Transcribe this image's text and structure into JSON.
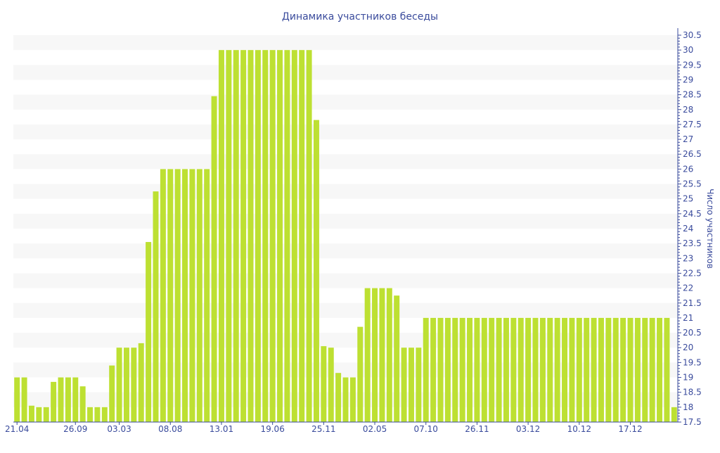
{
  "chart_data": {
    "type": "bar",
    "title": "Динамика участников беседы",
    "xlabel": "",
    "ylabel": "Число участников",
    "ylim": [
      17.5,
      30.5
    ],
    "y_tick_step": 0.5,
    "grid": "alternating horizontal bands",
    "x_tick_labels": [
      {
        "index": 0,
        "label": "21.04"
      },
      {
        "index": 8,
        "label": "26.09"
      },
      {
        "index": 14,
        "label": "03.03"
      },
      {
        "index": 21,
        "label": "08.08"
      },
      {
        "index": 28,
        "label": "13.01"
      },
      {
        "index": 35,
        "label": "19.06"
      },
      {
        "index": 42,
        "label": "25.11"
      },
      {
        "index": 49,
        "label": "02.05"
      },
      {
        "index": 56,
        "label": "07.10"
      },
      {
        "index": 63,
        "label": "26.11"
      },
      {
        "index": 70,
        "label": "03.12"
      },
      {
        "index": 77,
        "label": "10.12"
      },
      {
        "index": 84,
        "label": "17.12"
      }
    ],
    "values": [
      19,
      19,
      18.05,
      18,
      18,
      18.85,
      19,
      19,
      19,
      18.7,
      18,
      18,
      18,
      19.4,
      20,
      20,
      20,
      20.15,
      23.55,
      25.25,
      26,
      26,
      26,
      26,
      26,
      26,
      26,
      28.45,
      30,
      30,
      30,
      30,
      30,
      30,
      30,
      30,
      30,
      30,
      30,
      30,
      30,
      27.65,
      20.05,
      20,
      19.15,
      19,
      19,
      20.7,
      22,
      22,
      22,
      22,
      21.75,
      20,
      20,
      20,
      21,
      21,
      21,
      21,
      21,
      21,
      21,
      21,
      21,
      21,
      21,
      21,
      21,
      21,
      21,
      21,
      21,
      21,
      21,
      21,
      21,
      21,
      21,
      21,
      21,
      21,
      21,
      21,
      21,
      21,
      21,
      21,
      21,
      21,
      18
    ],
    "colors": {
      "bar": "#bde032",
      "axis": "#3a4b9c",
      "band": "#f7f7f7"
    }
  }
}
